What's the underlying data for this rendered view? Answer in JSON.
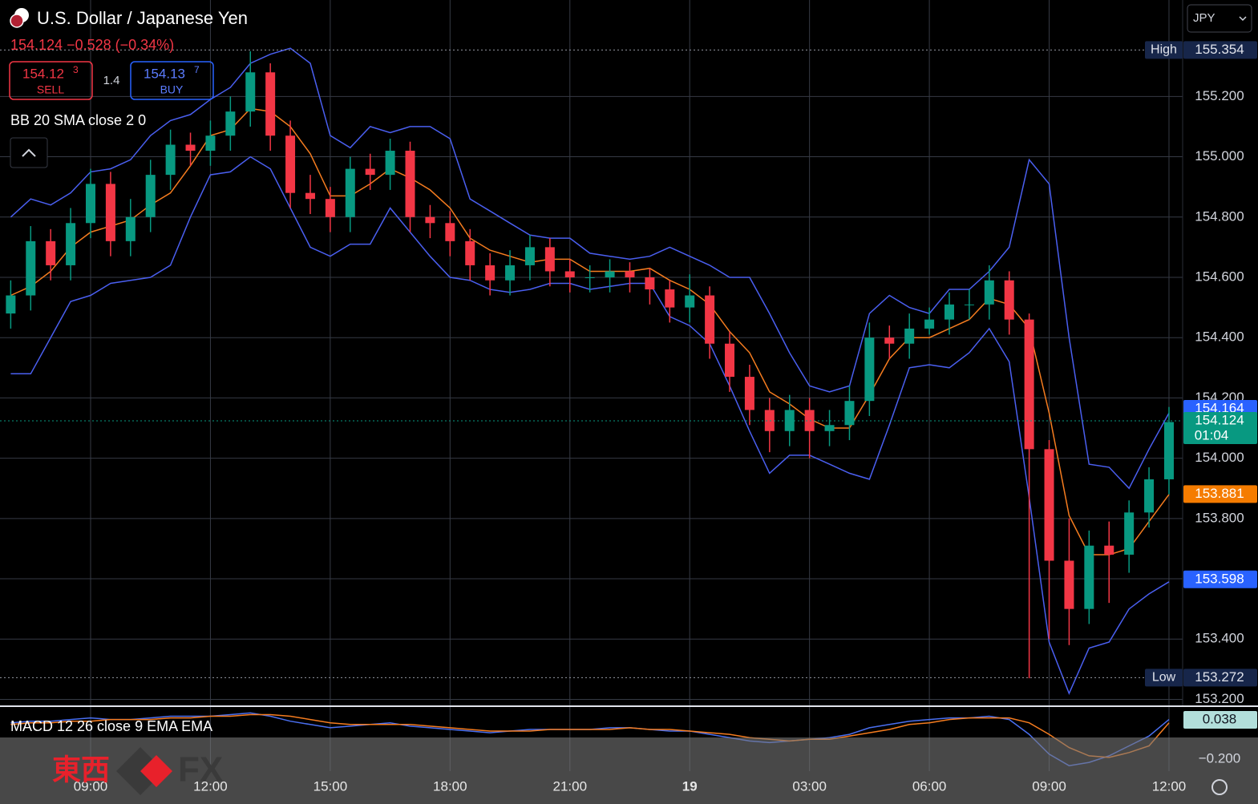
{
  "chart_data": [
    {
      "type": "candlestick",
      "title": "U.S. Dollar / Japanese Yen",
      "quote": "154.124 −0.528 (−0.34%)",
      "sell": {
        "price": "154.12",
        "pipette": "3",
        "side": "SELL"
      },
      "buy": {
        "price": "154.13",
        "pipette": "7",
        "side": "BUY"
      },
      "spread": "1.4",
      "indicator": "BB 20 SMA close 2 0",
      "currency_menu": "JPY",
      "grid": true,
      "up_color": "#089981",
      "down_color": "#f23645",
      "categories": [
        null,
        null,
        null,
        null,
        "09:00",
        null,
        null,
        null,
        null,
        null,
        "12:00",
        null,
        null,
        null,
        null,
        null,
        "15:00",
        null,
        null,
        null,
        null,
        null,
        "18:00",
        null,
        null,
        null,
        null,
        null,
        "21:00",
        null,
        null,
        null,
        null,
        null,
        "19",
        null,
        null,
        null,
        null,
        null,
        "03:00",
        null,
        null,
        null,
        null,
        null,
        "06:00",
        null,
        null,
        null,
        null,
        null,
        "09:00",
        null,
        null,
        null,
        null,
        null,
        "12:00"
      ],
      "open": [
        154.48,
        154.54,
        154.72,
        154.64,
        154.78,
        154.91,
        154.72,
        154.8,
        154.94,
        155.04,
        155.02,
        155.07,
        155.15,
        155.28,
        155.07,
        154.88,
        154.86,
        154.8,
        154.96,
        154.94,
        155.02,
        154.8,
        154.78,
        154.72,
        154.64,
        154.59,
        154.64,
        154.7,
        154.62,
        154.6,
        154.6,
        154.62,
        154.6,
        154.56,
        154.5,
        154.54,
        154.38,
        154.27,
        154.16,
        154.09,
        154.16,
        154.09,
        154.11,
        154.19,
        154.4,
        154.38,
        154.43,
        154.46,
        154.51,
        154.51,
        154.59,
        154.46,
        154.03,
        153.66,
        153.5,
        153.71,
        153.68,
        153.82,
        153.93
      ],
      "high": [
        154.59,
        154.77,
        154.76,
        154.83,
        154.96,
        154.95,
        154.86,
        154.99,
        155.09,
        155.08,
        155.12,
        155.2,
        155.35,
        155.31,
        155.12,
        154.94,
        154.9,
        155.0,
        155.01,
        155.06,
        155.05,
        154.84,
        154.82,
        154.76,
        154.68,
        154.69,
        154.74,
        154.73,
        154.66,
        154.64,
        154.66,
        154.65,
        154.63,
        154.59,
        154.61,
        154.57,
        154.42,
        154.31,
        154.2,
        154.21,
        154.2,
        154.16,
        154.24,
        154.45,
        154.44,
        154.48,
        154.5,
        154.55,
        154.56,
        154.64,
        154.62,
        154.48,
        154.06,
        153.8,
        153.76,
        153.79,
        153.86,
        153.97,
        154.17
      ],
      "low": [
        154.43,
        154.49,
        154.59,
        154.59,
        154.73,
        154.67,
        154.67,
        154.75,
        154.89,
        154.97,
        154.97,
        155.02,
        155.1,
        155.02,
        154.83,
        154.81,
        154.75,
        154.75,
        154.89,
        154.89,
        154.75,
        154.73,
        154.67,
        154.59,
        154.54,
        154.54,
        154.59,
        154.57,
        154.55,
        154.55,
        154.55,
        154.55,
        154.51,
        154.45,
        154.45,
        154.33,
        154.22,
        154.11,
        154.02,
        154.04,
        154.0,
        154.04,
        154.06,
        154.14,
        154.33,
        154.33,
        154.41,
        154.41,
        154.46,
        154.46,
        154.41,
        153.27,
        153.4,
        153.38,
        153.45,
        153.52,
        153.62,
        153.77,
        153.88
      ],
      "close": [
        154.54,
        154.72,
        154.64,
        154.78,
        154.91,
        154.72,
        154.8,
        154.94,
        155.04,
        155.02,
        155.07,
        155.15,
        155.28,
        155.07,
        154.88,
        154.86,
        154.8,
        154.96,
        154.94,
        155.02,
        154.8,
        154.78,
        154.72,
        154.64,
        154.59,
        154.64,
        154.7,
        154.62,
        154.6,
        154.6,
        154.62,
        154.6,
        154.56,
        154.5,
        154.54,
        154.38,
        154.27,
        154.16,
        154.09,
        154.16,
        154.09,
        154.11,
        154.19,
        154.4,
        154.38,
        154.43,
        154.46,
        154.51,
        154.51,
        154.59,
        154.46,
        154.03,
        153.66,
        153.5,
        153.71,
        153.68,
        153.82,
        153.93,
        154.12
      ],
      "bands": [
        {
          "color": "#4a5ff0",
          "values": [
            154.8,
            154.86,
            154.84,
            154.88,
            154.95,
            154.96,
            154.99,
            155.07,
            155.12,
            155.14,
            155.19,
            155.23,
            155.31,
            155.34,
            155.36,
            155.31,
            155.07,
            155.03,
            155.1,
            155.08,
            155.1,
            155.1,
            155.06,
            154.86,
            154.82,
            154.78,
            154.74,
            154.73,
            154.73,
            154.68,
            154.67,
            154.66,
            154.67,
            154.7,
            154.67,
            154.64,
            154.6,
            154.6,
            154.48,
            154.35,
            154.24,
            154.22,
            154.24,
            154.48,
            154.54,
            154.5,
            154.48,
            154.56,
            154.56,
            154.62,
            154.7,
            154.99,
            154.91,
            154.4,
            153.98,
            153.97,
            153.9,
            154.03,
            154.15
          ]
        },
        {
          "color": "#f57c1f",
          "values": [
            154.54,
            154.57,
            154.62,
            154.7,
            154.75,
            154.77,
            154.79,
            154.84,
            154.88,
            154.97,
            155.07,
            155.09,
            155.16,
            155.15,
            155.1,
            155.01,
            154.87,
            154.87,
            154.91,
            154.96,
            154.93,
            154.89,
            154.83,
            154.73,
            154.69,
            154.67,
            154.65,
            154.66,
            154.66,
            154.62,
            154.62,
            154.62,
            154.63,
            154.59,
            154.56,
            154.51,
            154.42,
            154.35,
            154.22,
            154.18,
            154.13,
            154.1,
            154.1,
            154.21,
            154.33,
            154.4,
            154.4,
            154.43,
            154.46,
            154.53,
            154.51,
            154.43,
            154.15,
            153.81,
            153.68,
            153.68,
            153.7,
            153.79,
            153.88
          ]
        },
        {
          "color": "#4a5ff0",
          "values": [
            154.28,
            154.28,
            154.4,
            154.52,
            154.54,
            154.58,
            154.59,
            154.6,
            154.64,
            154.8,
            154.94,
            154.95,
            155.0,
            154.96,
            154.83,
            154.7,
            154.67,
            154.71,
            154.71,
            154.83,
            154.75,
            154.67,
            154.6,
            154.59,
            154.56,
            154.55,
            154.56,
            154.58,
            154.58,
            154.56,
            154.57,
            154.58,
            154.58,
            154.47,
            154.44,
            154.38,
            154.24,
            154.09,
            153.95,
            154.01,
            154.01,
            153.98,
            153.95,
            153.93,
            154.11,
            154.3,
            154.31,
            154.3,
            154.35,
            154.43,
            154.32,
            153.87,
            153.39,
            153.22,
            153.37,
            153.39,
            153.5,
            153.55,
            153.59
          ]
        }
      ],
      "ylim": [
        153.18,
        155.52
      ],
      "yticks": [
        {
          "value": 153.2,
          "label": "153.200"
        },
        {
          "value": 153.4,
          "label": "153.400"
        },
        {
          "value": 153.6,
          "label": "153.600"
        },
        {
          "value": 153.8,
          "label": "153.800"
        },
        {
          "value": 154,
          "label": "154.000"
        },
        {
          "value": 154.2,
          "label": "154.200"
        },
        {
          "value": 154.4,
          "label": "154.400"
        },
        {
          "value": 154.6,
          "label": "154.600"
        },
        {
          "value": 154.8,
          "label": "154.800"
        },
        {
          "value": 155,
          "label": "155.000"
        },
        {
          "value": 155.2,
          "label": "155.200"
        }
      ],
      "price_labels": [
        {
          "value": 155.354,
          "tag": "High",
          "color": "#17264a",
          "text_color": "#e0e3eb",
          "dotted_line": true
        },
        {
          "value": 153.272,
          "tag": "Low",
          "color": "#17264a",
          "text_color": "#e0e3eb",
          "dotted_line": true
        },
        {
          "value": 154.164,
          "color": "#2962ff",
          "text_color": "#ffffff",
          "dotted_line": false
        },
        {
          "value": 154.124,
          "countdown": "01:04",
          "color": "#089981",
          "text_color": "#ffffff",
          "dotted_line": true
        },
        {
          "value": 153.881,
          "color": "#f57c00",
          "text_color": "#ffffff",
          "dotted_line": false
        },
        {
          "value": 153.598,
          "color": "#2962ff",
          "text_color": "#ffffff",
          "dotted_line": false
        }
      ]
    },
    {
      "type": "line",
      "title": "MACD 12 26 close 9 EMA EMA",
      "series": [
        {
          "color": "#4a6ff0",
          "values": [
            0.02,
            0.03,
            0.03,
            0.04,
            0.05,
            0.04,
            0.04,
            0.05,
            0.06,
            0.06,
            0.06,
            0.07,
            0.08,
            0.06,
            0.03,
            0.01,
            -0.01,
            0.0,
            0.01,
            0.02,
            0.0,
            -0.01,
            -0.02,
            -0.03,
            -0.04,
            -0.03,
            -0.02,
            -0.02,
            -0.02,
            -0.02,
            -0.01,
            -0.01,
            -0.02,
            -0.03,
            -0.03,
            -0.05,
            -0.07,
            -0.09,
            -0.1,
            -0.09,
            -0.08,
            -0.07,
            -0.05,
            -0.01,
            0.01,
            0.03,
            0.04,
            0.05,
            0.05,
            0.06,
            0.04,
            -0.05,
            -0.17,
            -0.24,
            -0.22,
            -0.18,
            -0.12,
            -0.06,
            0.04
          ]
        },
        {
          "color": "#f57c1f",
          "values": [
            0.01,
            0.02,
            0.02,
            0.03,
            0.03,
            0.04,
            0.04,
            0.04,
            0.05,
            0.05,
            0.06,
            0.06,
            0.07,
            0.07,
            0.06,
            0.04,
            0.02,
            0.01,
            0.01,
            0.01,
            0.01,
            0.0,
            -0.01,
            -0.02,
            -0.03,
            -0.03,
            -0.03,
            -0.02,
            -0.02,
            -0.02,
            -0.02,
            -0.01,
            -0.02,
            -0.02,
            -0.03,
            -0.04,
            -0.05,
            -0.07,
            -0.08,
            -0.09,
            -0.08,
            -0.08,
            -0.06,
            -0.04,
            -0.02,
            0.01,
            0.02,
            0.04,
            0.05,
            0.05,
            0.05,
            0.02,
            -0.05,
            -0.13,
            -0.18,
            -0.19,
            -0.16,
            -0.12,
            0.02
          ]
        }
      ],
      "ylim": [
        -0.273,
        0.116
      ],
      "yticks": [
        {
          "value": -0.2,
          "label": "−0.200"
        }
      ],
      "price_labels": [
        {
          "value": 0.038,
          "color": "#b2dfdb",
          "text_color": "#131722"
        }
      ]
    }
  ],
  "watermark": {
    "left": "東西",
    "right": "FX"
  }
}
